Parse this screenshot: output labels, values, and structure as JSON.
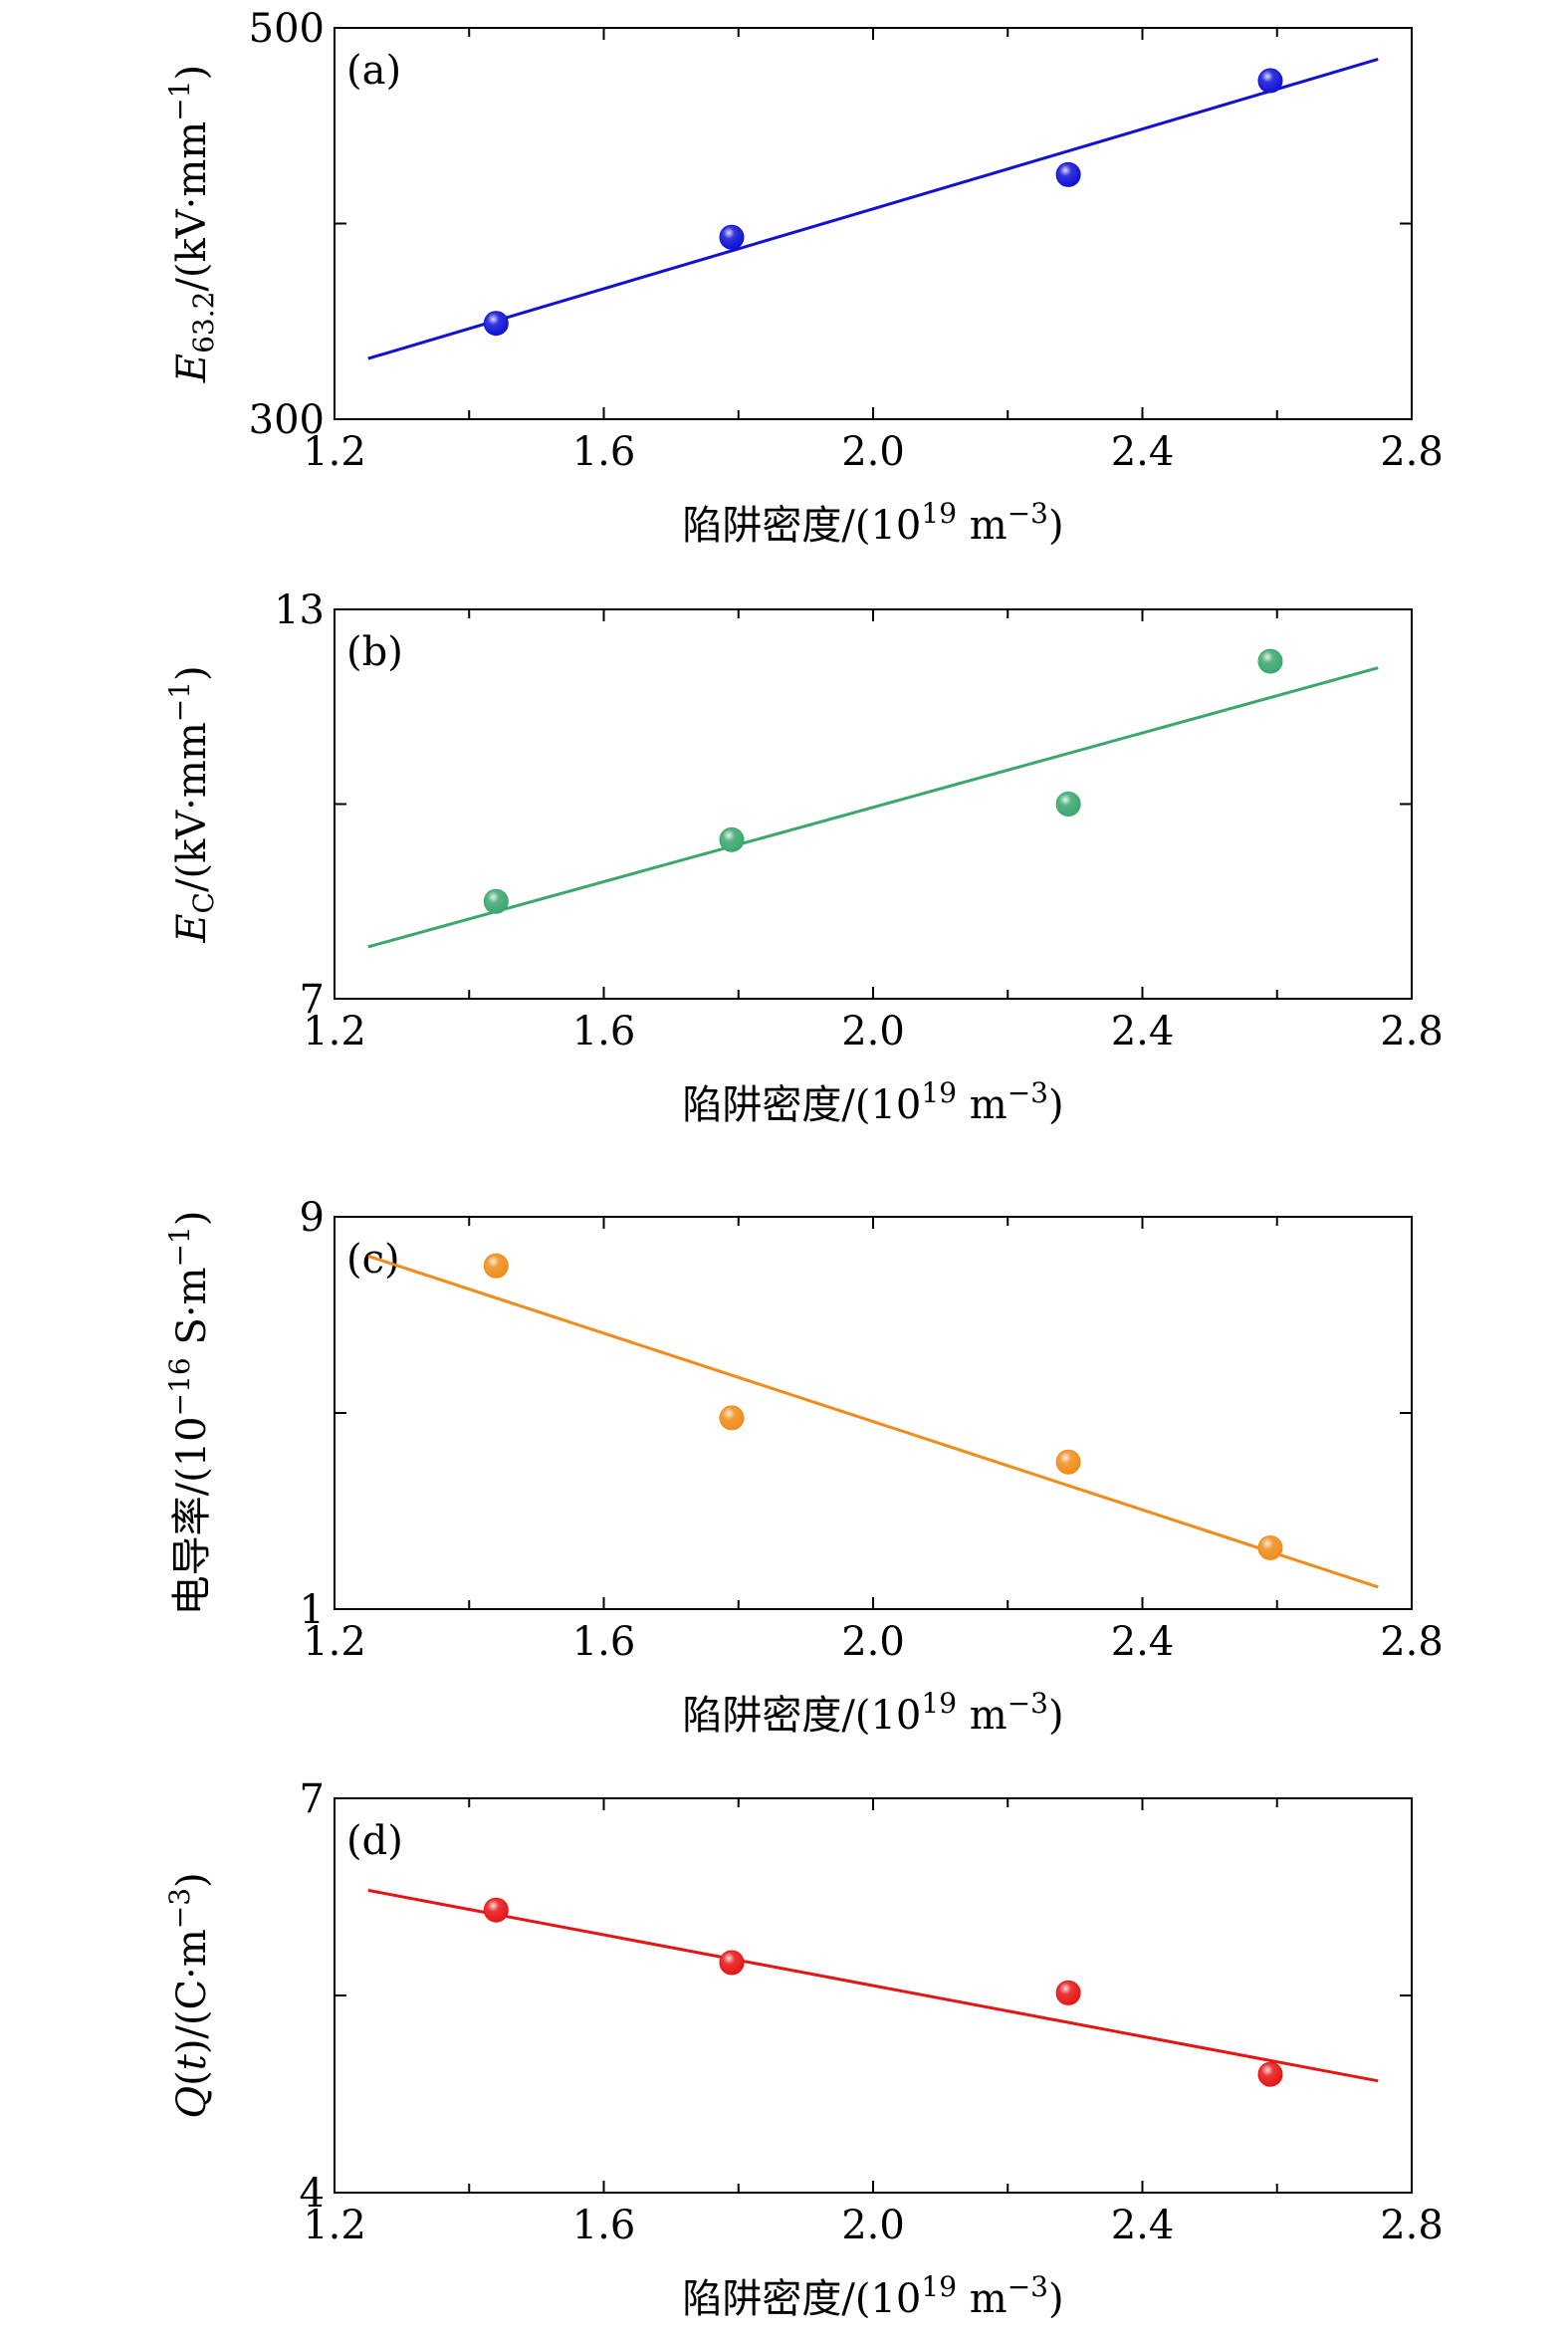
{
  "chart_data": [
    {
      "type": "scatter",
      "panel_label": "(a)",
      "xlabel": "陷阱密度/(10¹⁹ m⁻³)",
      "ylabel": "E₆₃.₂/(kV·mm⁻¹)",
      "xlim": [
        1.2,
        2.8
      ],
      "ylim": [
        300,
        500
      ],
      "xticks": [
        1.2,
        1.6,
        2.0,
        2.4,
        2.8
      ],
      "xtick_labels": [
        "1.2",
        "1.6",
        "2.0",
        "2.4",
        "2.8"
      ],
      "yticks_labeled": [
        300,
        500
      ],
      "ytick_labels": [
        "300",
        "500"
      ],
      "y_minor_ticks": [
        400
      ],
      "color": "#1010d8",
      "points": {
        "x": [
          1.44,
          1.79,
          2.29,
          2.59
        ],
        "y": [
          349,
          393,
          425,
          473
        ]
      },
      "fit_line": {
        "x": [
          1.25,
          2.75
        ],
        "y": [
          331,
          484
        ]
      },
      "grid": false
    },
    {
      "type": "scatter",
      "panel_label": "(b)",
      "xlabel": "陷阱密度/(10¹⁹ m⁻³)",
      "ylabel": "E_C/(kV·mm⁻¹)",
      "xlim": [
        1.2,
        2.8
      ],
      "ylim": [
        7,
        13
      ],
      "xticks": [
        1.2,
        1.6,
        2.0,
        2.4,
        2.8
      ],
      "xtick_labels": [
        "1.2",
        "1.6",
        "2.0",
        "2.4",
        "2.8"
      ],
      "yticks_labeled": [
        7,
        13
      ],
      "ytick_labels": [
        "7",
        "13"
      ],
      "y_minor_ticks": [
        10
      ],
      "color": "#3aa76d",
      "points": {
        "x": [
          1.44,
          1.79,
          2.29,
          2.59
        ],
        "y": [
          8.5,
          9.45,
          10.0,
          12.2
        ]
      },
      "fit_line": {
        "x": [
          1.25,
          2.75
        ],
        "y": [
          7.8,
          12.1
        ]
      },
      "grid": false
    },
    {
      "type": "scatter",
      "panel_label": "(c)",
      "xlabel": "陷阱密度/(10¹⁹ m⁻³)",
      "ylabel": "电导率/(10⁻¹⁶ S·m⁻¹)",
      "xlim": [
        1.2,
        2.8
      ],
      "ylim": [
        1,
        9
      ],
      "xticks": [
        1.2,
        1.6,
        2.0,
        2.4,
        2.8
      ],
      "xtick_labels": [
        "1.2",
        "1.6",
        "2.0",
        "2.4",
        "2.8"
      ],
      "yticks_labeled": [
        1,
        9
      ],
      "ytick_labels": [
        "1",
        "9"
      ],
      "y_minor_ticks": [
        5
      ],
      "color": "#f08c1a",
      "points": {
        "x": [
          1.44,
          1.79,
          2.29,
          2.59
        ],
        "y": [
          8.0,
          4.9,
          4.0,
          2.25
        ]
      },
      "fit_line": {
        "x": [
          1.25,
          2.75
        ],
        "y": [
          8.2,
          1.45
        ]
      },
      "grid": false
    },
    {
      "type": "scatter",
      "panel_label": "(d)",
      "xlabel": "陷阱密度/(10¹⁹ m⁻³)",
      "ylabel": "Q(t)/(C·m⁻³)",
      "xlim": [
        1.2,
        2.8
      ],
      "ylim": [
        4,
        7
      ],
      "xticks": [
        1.2,
        1.6,
        2.0,
        2.4,
        2.8
      ],
      "xtick_labels": [
        "1.2",
        "1.6",
        "2.0",
        "2.4",
        "2.8"
      ],
      "yticks_labeled": [
        4,
        7
      ],
      "ytick_labels": [
        "4",
        "7"
      ],
      "y_minor_ticks": [
        5.5
      ],
      "color": "#e81414",
      "points": {
        "x": [
          1.44,
          1.79,
          2.29,
          2.59
        ],
        "y": [
          6.15,
          5.75,
          5.52,
          4.9
        ]
      },
      "fit_line": {
        "x": [
          1.25,
          2.75
        ],
        "y": [
          6.3,
          4.85
        ]
      },
      "grid": false
    }
  ]
}
